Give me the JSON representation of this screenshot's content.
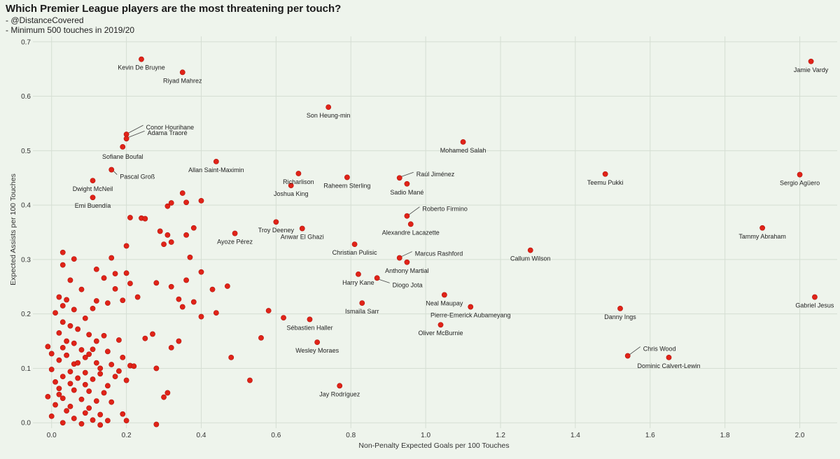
{
  "title": "Which Premier League players are the most threatening per touch?",
  "subtitle_lines": [
    "- @DistanceCovered",
    "- Minimum 500 touches in 2019/20"
  ],
  "colors": {
    "background": "#eef4ec",
    "grid": "#d5ded3",
    "point": "#e02318",
    "point_stroke": "#b3140d"
  },
  "chart_data": {
    "type": "scatter",
    "title": "Which Premier League players are the most threatening per touch?",
    "xlabel": "Non-Penalty Expected Goals per 100 Touches",
    "ylabel": "Expected Assists per 100 Touches",
    "xlim": [
      -0.05,
      2.1
    ],
    "ylim": [
      -0.01,
      0.71
    ],
    "xticks": [
      "0.0",
      "0.2",
      "0.4",
      "0.6",
      "0.8",
      "1.0",
      "1.2",
      "1.4",
      "1.6",
      "1.8",
      "2.0"
    ],
    "yticks": [
      "0.0",
      "0.1",
      "0.2",
      "0.3",
      "0.4",
      "0.5",
      "0.6",
      "0.7"
    ],
    "grid": true,
    "labeled_points": [
      {
        "name": "Kevin De Bruyne",
        "x": 0.24,
        "y": 0.668
      },
      {
        "name": "Riyad Mahrez",
        "x": 0.35,
        "y": 0.644
      },
      {
        "name": "Son Heung-min",
        "x": 0.74,
        "y": 0.58
      },
      {
        "name": "Conor Hourihane",
        "x": 0.2,
        "y": 0.53
      },
      {
        "name": "Adama Traoré",
        "x": 0.2,
        "y": 0.522
      },
      {
        "name": "Sofiane Boufal",
        "x": 0.19,
        "y": 0.507
      },
      {
        "name": "Mohamed Salah",
        "x": 1.1,
        "y": 0.516
      },
      {
        "name": "Allan Saint-Maximin",
        "x": 0.44,
        "y": 0.48
      },
      {
        "name": "Pascal Groß",
        "x": 0.16,
        "y": 0.465
      },
      {
        "name": "Richarlison",
        "x": 0.66,
        "y": 0.458
      },
      {
        "name": "Raúl Jiménez",
        "x": 0.93,
        "y": 0.45
      },
      {
        "name": "Teemu Pukki",
        "x": 1.48,
        "y": 0.457
      },
      {
        "name": "Sergio Agüero",
        "x": 2.0,
        "y": 0.456
      },
      {
        "name": "Jamie Vardy",
        "x": 2.03,
        "y": 0.664
      },
      {
        "name": "Dwight McNeil",
        "x": 0.11,
        "y": 0.445
      },
      {
        "name": "Raheem Sterling",
        "x": 0.79,
        "y": 0.451
      },
      {
        "name": "Joshua King",
        "x": 0.64,
        "y": 0.436
      },
      {
        "name": "Sadio Mané",
        "x": 0.95,
        "y": 0.439
      },
      {
        "name": "Emi Buendía",
        "x": 0.11,
        "y": 0.414
      },
      {
        "name": "Roberto Firmino",
        "x": 0.95,
        "y": 0.38
      },
      {
        "name": "Troy Deeney",
        "x": 0.6,
        "y": 0.369
      },
      {
        "name": "Alexandre Lacazette",
        "x": 0.96,
        "y": 0.365
      },
      {
        "name": "Tammy Abraham",
        "x": 1.9,
        "y": 0.358
      },
      {
        "name": "Anwar El Ghazi",
        "x": 0.67,
        "y": 0.357
      },
      {
        "name": "Ayoze Pérez",
        "x": 0.49,
        "y": 0.348
      },
      {
        "name": "Christian Pulisic",
        "x": 0.81,
        "y": 0.328
      },
      {
        "name": "Callum Wilson",
        "x": 1.28,
        "y": 0.317
      },
      {
        "name": "Marcus Rashford",
        "x": 0.93,
        "y": 0.303
      },
      {
        "name": "Anthony Martial",
        "x": 0.95,
        "y": 0.295
      },
      {
        "name": "Harry Kane",
        "x": 0.82,
        "y": 0.273
      },
      {
        "name": "Diogo Jota",
        "x": 0.87,
        "y": 0.266
      },
      {
        "name": "Neal Maupay",
        "x": 1.05,
        "y": 0.235
      },
      {
        "name": "Gabriel Jesus",
        "x": 2.04,
        "y": 0.231
      },
      {
        "name": "Ismaïla Sarr",
        "x": 0.83,
        "y": 0.22
      },
      {
        "name": "Pierre-Emerick Aubameyang",
        "x": 1.12,
        "y": 0.213
      },
      {
        "name": "Danny Ings",
        "x": 1.52,
        "y": 0.21
      },
      {
        "name": "Sébastien Haller",
        "x": 0.69,
        "y": 0.19
      },
      {
        "name": "Oliver McBurnie",
        "x": 1.04,
        "y": 0.18
      },
      {
        "name": "Wesley Moraes",
        "x": 0.71,
        "y": 0.148
      },
      {
        "name": "Chris Wood",
        "x": 1.54,
        "y": 0.123
      },
      {
        "name": "Dominic Calvert-Lewin",
        "x": 1.65,
        "y": 0.12
      },
      {
        "name": "Jay Rodríguez",
        "x": 0.77,
        "y": 0.068
      }
    ],
    "other_points": [
      [
        0.35,
        0.422
      ],
      [
        0.36,
        0.405
      ],
      [
        0.32,
        0.404
      ],
      [
        0.31,
        0.398
      ],
      [
        0.4,
        0.408
      ],
      [
        0.21,
        0.377
      ],
      [
        0.24,
        0.376
      ],
      [
        0.25,
        0.375
      ],
      [
        0.38,
        0.358
      ],
      [
        0.29,
        0.352
      ],
      [
        0.31,
        0.345
      ],
      [
        0.36,
        0.345
      ],
      [
        0.3,
        0.328
      ],
      [
        0.32,
        0.332
      ],
      [
        0.2,
        0.325
      ],
      [
        0.03,
        0.313
      ],
      [
        0.16,
        0.303
      ],
      [
        0.37,
        0.304
      ],
      [
        0.06,
        0.301
      ],
      [
        0.03,
        0.29
      ],
      [
        0.12,
        0.282
      ],
      [
        0.17,
        0.274
      ],
      [
        0.2,
        0.275
      ],
      [
        0.4,
        0.277
      ],
      [
        0.14,
        0.266
      ],
      [
        0.05,
        0.262
      ],
      [
        0.36,
        0.262
      ],
      [
        0.28,
        0.257
      ],
      [
        0.32,
        0.25
      ],
      [
        0.21,
        0.256
      ],
      [
        0.47,
        0.251
      ],
      [
        0.17,
        0.246
      ],
      [
        0.08,
        0.245
      ],
      [
        0.43,
        0.245
      ],
      [
        0.12,
        0.224
      ],
      [
        0.02,
        0.231
      ],
      [
        0.04,
        0.226
      ],
      [
        0.23,
        0.231
      ],
      [
        0.19,
        0.225
      ],
      [
        0.34,
        0.227
      ],
      [
        0.38,
        0.222
      ],
      [
        0.15,
        0.22
      ],
      [
        0.11,
        0.21
      ],
      [
        0.03,
        0.215
      ],
      [
        0.06,
        0.208
      ],
      [
        0.35,
        0.213
      ],
      [
        0.01,
        0.202
      ],
      [
        0.09,
        0.192
      ],
      [
        0.4,
        0.195
      ],
      [
        0.44,
        0.202
      ],
      [
        0.58,
        0.206
      ],
      [
        0.62,
        0.193
      ],
      [
        0.03,
        0.185
      ],
      [
        0.05,
        0.178
      ],
      [
        0.07,
        0.172
      ],
      [
        0.02,
        0.165
      ],
      [
        0.1,
        0.162
      ],
      [
        0.14,
        0.16
      ],
      [
        0.25,
        0.155
      ],
      [
        0.34,
        0.15
      ],
      [
        0.27,
        0.163
      ],
      [
        0.56,
        0.156
      ],
      [
        0.18,
        0.152
      ],
      [
        0.12,
        0.15
      ],
      [
        0.06,
        0.146
      ],
      [
        -0.01,
        0.14
      ],
      [
        0.03,
        0.138
      ],
      [
        0.08,
        0.134
      ],
      [
        0.15,
        0.131
      ],
      [
        0.32,
        0.138
      ],
      [
        0.0,
        0.127
      ],
      [
        0.04,
        0.124
      ],
      [
        0.1,
        0.126
      ],
      [
        0.19,
        0.12
      ],
      [
        0.48,
        0.12
      ],
      [
        0.02,
        0.115
      ],
      [
        0.06,
        0.108
      ],
      [
        0.12,
        0.11
      ],
      [
        0.16,
        0.107
      ],
      [
        0.21,
        0.105
      ],
      [
        0.22,
        0.104
      ],
      [
        0.28,
        0.1
      ],
      [
        0.0,
        0.098
      ],
      [
        0.05,
        0.094
      ],
      [
        0.09,
        0.092
      ],
      [
        0.13,
        0.09
      ],
      [
        0.18,
        0.095
      ],
      [
        0.03,
        0.085
      ],
      [
        0.07,
        0.082
      ],
      [
        0.11,
        0.08
      ],
      [
        0.2,
        0.078
      ],
      [
        0.53,
        0.078
      ],
      [
        0.01,
        0.075
      ],
      [
        0.05,
        0.072
      ],
      [
        0.09,
        0.07
      ],
      [
        0.15,
        0.068
      ],
      [
        0.02,
        0.063
      ],
      [
        0.06,
        0.06
      ],
      [
        0.1,
        0.058
      ],
      [
        0.14,
        0.055
      ],
      [
        0.31,
        0.055
      ],
      [
        0.3,
        0.047
      ],
      [
        -0.01,
        0.048
      ],
      [
        0.03,
        0.045
      ],
      [
        0.08,
        0.043
      ],
      [
        0.12,
        0.04
      ],
      [
        0.16,
        0.038
      ],
      [
        0.01,
        0.033
      ],
      [
        0.05,
        0.03
      ],
      [
        0.1,
        0.027
      ],
      [
        0.04,
        0.022
      ],
      [
        0.09,
        0.018
      ],
      [
        0.13,
        0.015
      ],
      [
        0.19,
        0.016
      ],
      [
        0.0,
        0.012
      ],
      [
        0.06,
        0.008
      ],
      [
        0.11,
        0.005
      ],
      [
        0.15,
        0.004
      ],
      [
        0.03,
        0.0
      ],
      [
        0.08,
        -0.002
      ],
      [
        0.13,
        -0.004
      ],
      [
        0.28,
        -0.003
      ],
      [
        0.2,
        0.004
      ],
      [
        0.02,
        0.052
      ],
      [
        0.07,
        0.11
      ],
      [
        0.11,
        0.135
      ],
      [
        0.17,
        0.085
      ],
      [
        0.04,
        0.15
      ],
      [
        0.09,
        0.12
      ],
      [
        0.13,
        0.1
      ]
    ]
  }
}
